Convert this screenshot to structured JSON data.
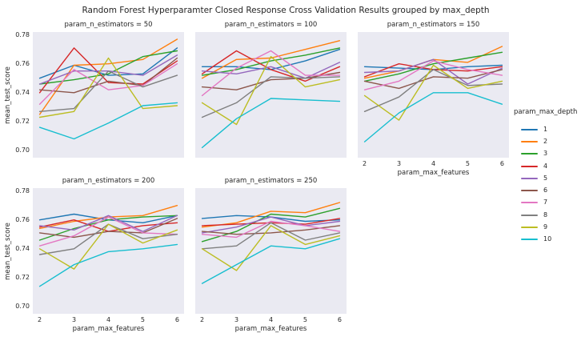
{
  "title": "Random Forest Hyperparamter Closed Response Cross Validation Results grouped by max_depth",
  "panel_bg": "#eaeaf2",
  "text_color": "#262626",
  "axes": {
    "xlabel": "param_max_features",
    "ylabel": "mean_test_score",
    "xtick_labels": [
      "2",
      "3",
      "4",
      "5",
      "6"
    ],
    "ytick_labels": [
      "0.78",
      "0.76",
      "0.74",
      "0.72",
      "0.70"
    ]
  },
  "legend": {
    "title": "param_max_depth"
  },
  "chart_data": {
    "type": "line",
    "title": "Random Forest Hyperparamter Closed Response Cross Validation Results grouped by max_depth",
    "facet_by": "param_n_estimators",
    "xlabel": "param_max_features",
    "ylabel": "mean_test_score",
    "legend_title": "param_max_depth",
    "legend_position": "right",
    "grid": false,
    "x": [
      2,
      3,
      4,
      5,
      6
    ],
    "xlim": [
      1.8,
      6.2
    ],
    "ylim": [
      0.695,
      0.782
    ],
    "yticks": [
      0.78,
      0.76,
      0.74,
      0.72,
      0.7
    ],
    "series_labels": [
      "1",
      "2",
      "3",
      "4",
      "5",
      "6",
      "7",
      "8",
      "9",
      "10"
    ],
    "palette": [
      "#1f77b4",
      "#ff7f0e",
      "#2ca02c",
      "#d62728",
      "#9467bd",
      "#8c564b",
      "#e377c2",
      "#7f7f7f",
      "#bcbd22",
      "#17becf"
    ],
    "facets": [
      {
        "label": "param_n_estimators = 50",
        "series": [
          {
            "name": "1",
            "values": [
              0.75,
              0.759,
              0.752,
              0.753,
              0.771
            ]
          },
          {
            "name": "2",
            "values": [
              0.725,
              0.759,
              0.76,
              0.763,
              0.777
            ]
          },
          {
            "name": "3",
            "values": [
              0.746,
              0.749,
              0.753,
              0.765,
              0.769
            ]
          },
          {
            "name": "4",
            "values": [
              0.74,
              0.771,
              0.747,
              0.746,
              0.762
            ]
          },
          {
            "name": "5",
            "values": [
              0.746,
              0.755,
              0.755,
              0.752,
              0.766
            ]
          },
          {
            "name": "6",
            "values": [
              0.742,
              0.74,
              0.748,
              0.745,
              0.764
            ]
          },
          {
            "name": "7",
            "values": [
              0.732,
              0.756,
              0.742,
              0.745,
              0.76
            ]
          },
          {
            "name": "8",
            "values": [
              0.727,
              0.729,
              0.755,
              0.744,
              0.752
            ]
          },
          {
            "name": "9",
            "values": [
              0.723,
              0.727,
              0.764,
              0.729,
              0.731
            ]
          },
          {
            "name": "10",
            "values": [
              0.716,
              0.708,
              0.719,
              0.731,
              0.733
            ]
          }
        ]
      },
      {
        "label": "param_n_estimators = 100",
        "series": [
          {
            "name": "1",
            "values": [
              0.758,
              0.758,
              0.756,
              0.762,
              0.77
            ]
          },
          {
            "name": "2",
            "values": [
              0.75,
              0.763,
              0.764,
              0.77,
              0.776
            ]
          },
          {
            "name": "3",
            "values": [
              0.752,
              0.756,
              0.762,
              0.766,
              0.771
            ]
          },
          {
            "name": "4",
            "values": [
              0.753,
              0.769,
              0.756,
              0.748,
              0.758
            ]
          },
          {
            "name": "5",
            "values": [
              0.755,
              0.753,
              0.758,
              0.75,
              0.761
            ]
          },
          {
            "name": "6",
            "values": [
              0.744,
              0.742,
              0.749,
              0.75,
              0.754
            ]
          },
          {
            "name": "7",
            "values": [
              0.738,
              0.757,
              0.769,
              0.752,
              0.752
            ]
          },
          {
            "name": "8",
            "values": [
              0.723,
              0.733,
              0.751,
              0.75,
              0.751
            ]
          },
          {
            "name": "9",
            "values": [
              0.733,
              0.718,
              0.765,
              0.744,
              0.749
            ]
          },
          {
            "name": "10",
            "values": [
              0.702,
              0.722,
              0.736,
              0.735,
              0.734
            ]
          }
        ]
      },
      {
        "label": "param_n_estimators = 150",
        "series": [
          {
            "name": "1",
            "values": [
              0.758,
              0.757,
              0.756,
              0.758,
              0.759
            ]
          },
          {
            "name": "2",
            "values": [
              0.75,
              0.755,
              0.763,
              0.761,
              0.772
            ]
          },
          {
            "name": "3",
            "values": [
              0.748,
              0.753,
              0.76,
              0.764,
              0.768
            ]
          },
          {
            "name": "4",
            "values": [
              0.751,
              0.76,
              0.756,
              0.755,
              0.758
            ]
          },
          {
            "name": "5",
            "values": [
              0.754,
              0.755,
              0.763,
              0.746,
              0.757
            ]
          },
          {
            "name": "6",
            "values": [
              0.748,
              0.743,
              0.751,
              0.75,
              0.756
            ]
          },
          {
            "name": "7",
            "values": [
              0.742,
              0.748,
              0.762,
              0.756,
              0.752
            ]
          },
          {
            "name": "8",
            "values": [
              0.727,
              0.737,
              0.756,
              0.745,
              0.746
            ]
          },
          {
            "name": "9",
            "values": [
              0.738,
              0.721,
              0.759,
              0.743,
              0.748
            ]
          },
          {
            "name": "10",
            "values": [
              0.706,
              0.726,
              0.74,
              0.74,
              0.732
            ]
          }
        ]
      },
      {
        "label": "param_n_estimators = 200",
        "series": [
          {
            "name": "1",
            "values": [
              0.76,
              0.764,
              0.76,
              0.758,
              0.763
            ]
          },
          {
            "name": "2",
            "values": [
              0.754,
              0.759,
              0.762,
              0.763,
              0.77
            ]
          },
          {
            "name": "3",
            "values": [
              0.746,
              0.754,
              0.76,
              0.762,
              0.763
            ]
          },
          {
            "name": "4",
            "values": [
              0.755,
              0.76,
              0.752,
              0.756,
              0.758
            ]
          },
          {
            "name": "5",
            "values": [
              0.756,
              0.753,
              0.763,
              0.752,
              0.763
            ]
          },
          {
            "name": "6",
            "values": [
              0.751,
              0.748,
              0.752,
              0.751,
              0.761
            ]
          },
          {
            "name": "7",
            "values": [
              0.742,
              0.749,
              0.762,
              0.751,
              0.75
            ]
          },
          {
            "name": "8",
            "values": [
              0.736,
              0.74,
              0.757,
              0.747,
              0.75
            ]
          },
          {
            "name": "9",
            "values": [
              0.74,
              0.726,
              0.757,
              0.744,
              0.753
            ]
          },
          {
            "name": "10",
            "values": [
              0.714,
              0.729,
              0.738,
              0.74,
              0.743
            ]
          }
        ]
      },
      {
        "label": "param_n_estimators = 250",
        "series": [
          {
            "name": "1",
            "values": [
              0.761,
              0.763,
              0.762,
              0.759,
              0.76
            ]
          },
          {
            "name": "2",
            "values": [
              0.755,
              0.758,
              0.766,
              0.765,
              0.772
            ]
          },
          {
            "name": "3",
            "values": [
              0.745,
              0.752,
              0.764,
              0.762,
              0.768
            ]
          },
          {
            "name": "4",
            "values": [
              0.756,
              0.757,
              0.758,
              0.757,
              0.761
            ]
          },
          {
            "name": "5",
            "values": [
              0.751,
              0.755,
              0.762,
              0.756,
              0.759
            ]
          },
          {
            "name": "6",
            "values": [
              0.752,
              0.75,
              0.751,
              0.753,
              0.756
            ]
          },
          {
            "name": "7",
            "values": [
              0.75,
              0.748,
              0.759,
              0.756,
              0.752
            ]
          },
          {
            "name": "8",
            "values": [
              0.74,
              0.742,
              0.758,
              0.746,
              0.751
            ]
          },
          {
            "name": "9",
            "values": [
              0.74,
              0.725,
              0.756,
              0.743,
              0.749
            ]
          },
          {
            "name": "10",
            "values": [
              0.716,
              0.729,
              0.742,
              0.74,
              0.747
            ]
          }
        ]
      }
    ]
  }
}
